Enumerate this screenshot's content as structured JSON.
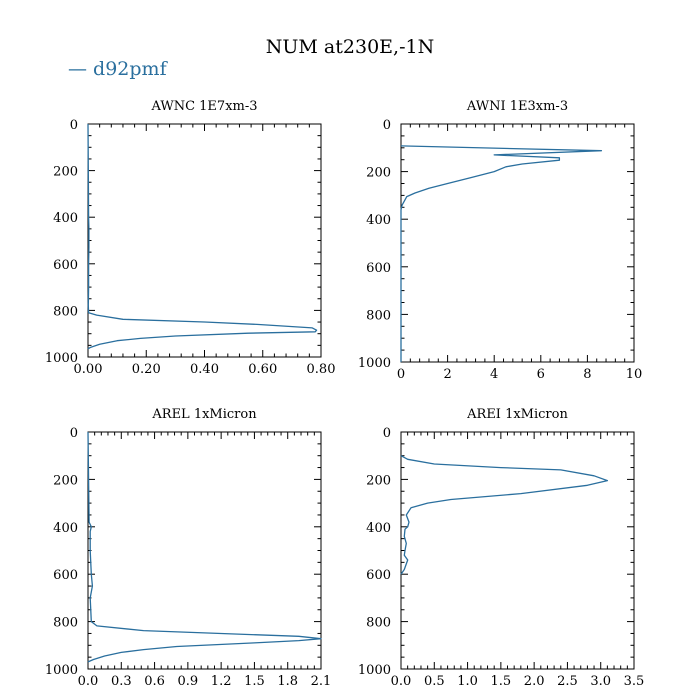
{
  "title": "NUM at230E,-1N",
  "legend": {
    "dash": "—",
    "label": "d92pmf",
    "color": "#2a6f9e"
  },
  "chart_data": [
    {
      "type": "line",
      "title": "AWNC  1E7xm-3",
      "xlim": [
        0,
        0.8
      ],
      "ylim": [
        1000,
        0
      ],
      "xticks": [
        0,
        0.2,
        0.4,
        0.6,
        0.8
      ],
      "xtick_labels": [
        "0.00",
        "0.20",
        "0.40",
        "0.60",
        "0.80"
      ],
      "yticks": [
        0,
        200,
        400,
        600,
        800,
        1000
      ],
      "ytick_labels": [
        "0",
        "200",
        "400",
        "600",
        "800",
        "1000"
      ],
      "series": [
        {
          "name": "d92pmf",
          "x": [
            0,
            0.002,
            0.003,
            0.003,
            0.002,
            0.002,
            0.001,
            0.002,
            0.03,
            0.12,
            0.4,
            0.58,
            0.77,
            0.785,
            0.78,
            0.55,
            0.3,
            0.18,
            0.1,
            0.04,
            0.01,
            0
          ],
          "y": [
            0,
            400,
            450,
            530,
            600,
            700,
            780,
            810,
            820,
            838,
            850,
            860,
            875,
            885,
            892,
            898,
            910,
            920,
            930,
            945,
            958,
            965
          ]
        }
      ]
    },
    {
      "type": "line",
      "title": "AWNI  1E3xm-3",
      "xlim": [
        0,
        10
      ],
      "ylim": [
        1000,
        0
      ],
      "xticks": [
        0,
        2,
        4,
        6,
        8,
        10
      ],
      "xtick_labels": [
        "0",
        "2",
        "4",
        "6",
        "8",
        "10"
      ],
      "yticks": [
        0,
        200,
        400,
        600,
        800,
        1000
      ],
      "ytick_labels": [
        "0",
        "200",
        "400",
        "600",
        "800",
        "1000"
      ],
      "series": [
        {
          "name": "d92pmf",
          "x": [
            0,
            8.6,
            4.0,
            6.8,
            6.8,
            5.2,
            4.5,
            4.0,
            3.0,
            2.0,
            1.2,
            0.6,
            0.25,
            0.05,
            0,
            0
          ],
          "y": [
            92,
            112,
            130,
            142,
            152,
            168,
            180,
            200,
            225,
            250,
            270,
            290,
            305,
            340,
            360,
            1000
          ]
        }
      ]
    },
    {
      "type": "line",
      "title": "AREL  1xMicron",
      "xlim": [
        0,
        2.1
      ],
      "ylim": [
        1000,
        0
      ],
      "xticks": [
        0,
        0.3,
        0.6,
        0.9,
        1.2,
        1.5,
        1.8,
        2.1
      ],
      "xtick_labels": [
        "0.0",
        "0.3",
        "0.6",
        "0.9",
        "1.2",
        "1.5",
        "1.8",
        "2.1"
      ],
      "yticks": [
        0,
        200,
        400,
        600,
        800,
        1000
      ],
      "ytick_labels": [
        "0",
        "200",
        "400",
        "600",
        "800",
        "1000"
      ],
      "series": [
        {
          "name": "d92pmf",
          "x": [
            0,
            0.01,
            0.03,
            0.02,
            0.02,
            0.03,
            0.04,
            0.02,
            0.03,
            0.08,
            0.5,
            1.2,
            1.9,
            2.1,
            1.9,
            1.5,
            0.8,
            0.5,
            0.3,
            0.15,
            0.05,
            0
          ],
          "y": [
            0,
            380,
            400,
            420,
            500,
            600,
            650,
            700,
            800,
            818,
            838,
            850,
            862,
            872,
            880,
            890,
            905,
            918,
            930,
            945,
            960,
            970
          ]
        }
      ]
    },
    {
      "type": "line",
      "title": "AREI  1xMicron",
      "xlim": [
        0,
        3.5
      ],
      "ylim": [
        1000,
        0
      ],
      "xticks": [
        0,
        0.5,
        1.0,
        1.5,
        2.0,
        2.5,
        3.0,
        3.5
      ],
      "xtick_labels": [
        "0.0",
        "0.5",
        "1.0",
        "1.5",
        "2.0",
        "2.5",
        "3.0",
        "3.5"
      ],
      "yticks": [
        0,
        200,
        400,
        600,
        800,
        1000
      ],
      "ytick_labels": [
        "0",
        "200",
        "400",
        "600",
        "800",
        "1000"
      ],
      "series": [
        {
          "name": "d92pmf",
          "x": [
            0,
            0.1,
            0.5,
            1.5,
            2.4,
            2.9,
            3.1,
            2.8,
            1.8,
            0.75,
            0.4,
            0.15,
            0.08,
            0.12,
            0.1,
            0.06,
            0.05,
            0.08,
            0.06,
            0.05,
            0.1,
            0.05,
            0
          ],
          "y": [
            100,
            115,
            135,
            150,
            160,
            185,
            205,
            225,
            260,
            285,
            300,
            320,
            350,
            380,
            400,
            410,
            440,
            470,
            500,
            520,
            540,
            580,
            600
          ]
        }
      ]
    }
  ]
}
